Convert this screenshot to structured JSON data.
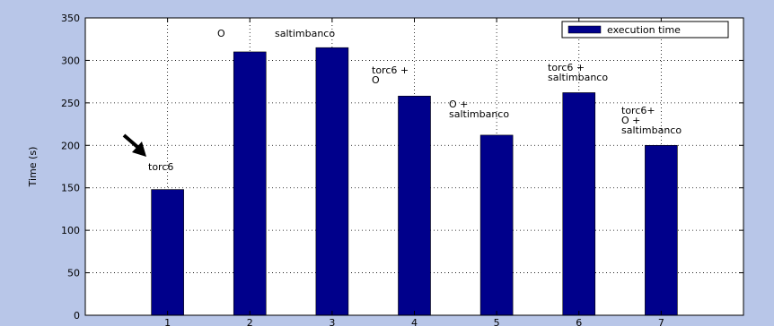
{
  "colors": {
    "background": "#B8C6E8",
    "plot_area": "#FFFFFF",
    "bar": "#00008B",
    "grid": "#000000"
  },
  "chart_data": {
    "type": "bar",
    "categories": [
      "1",
      "2",
      "3",
      "4",
      "5",
      "6",
      "7"
    ],
    "series": [
      {
        "name": "execution time",
        "values": [
          148,
          310,
          315,
          258,
          212,
          262,
          200
        ]
      }
    ],
    "ylabel": "Time (s)",
    "xlabel": "",
    "title": "",
    "ylim": [
      0,
      350
    ],
    "yticks": [
      0,
      50,
      100,
      150,
      200,
      250,
      300,
      350
    ],
    "grid": true,
    "grid_style": "dotted",
    "legend": {
      "placement": "top-right",
      "entries": [
        "execution time"
      ]
    },
    "annotations": [
      {
        "category": "1",
        "lines": [
          "torc6"
        ],
        "arrow": true
      },
      {
        "category": "2",
        "lines": [
          "O"
        ]
      },
      {
        "category": "3",
        "lines": [
          "saltimbanco"
        ]
      },
      {
        "category": "4",
        "lines": [
          "torc6 +",
          "O"
        ]
      },
      {
        "category": "5",
        "lines": [
          "O +",
          "saltimbanco"
        ]
      },
      {
        "category": "6",
        "lines": [
          "torc6 +",
          "saltimbanco"
        ]
      },
      {
        "category": "7",
        "lines": [
          "torc6+",
          "O +",
          "saltimbanco"
        ]
      }
    ]
  }
}
